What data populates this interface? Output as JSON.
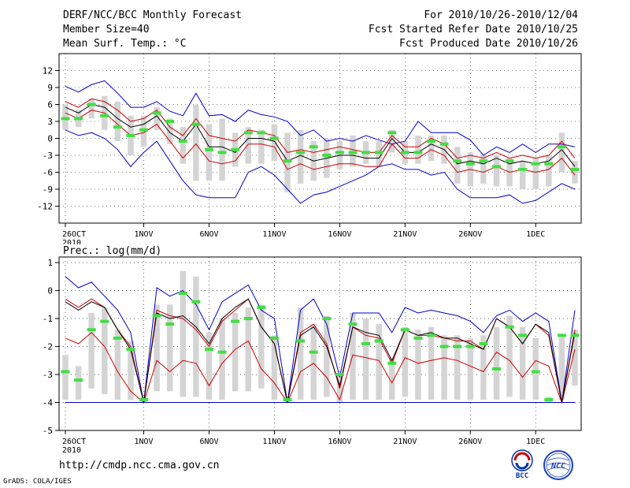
{
  "header": {
    "title": "DERF/NCC/BCC Monthly Forecast",
    "member_size": "Member Size=40",
    "variable": "Mean Surf. Temp.: °C",
    "period": "For 2010/10/26-2010/12/04",
    "started": "Fcst Started Refer Date 2010/10/25",
    "produced": "Fcst Produced Date 2010/10/26"
  },
  "precip_label": "Prec.: log(mm/d)",
  "footer": {
    "url": "http://cmdp.ncc.cma.gov.cn",
    "grads": "GrADS: COLA/IGES",
    "logo_bcc": "BCC",
    "logo_ncc": "NCC"
  },
  "colors": {
    "max_min": "#0000cc",
    "spread": "#cc0000",
    "mean": "#000000",
    "median": "#44dd44",
    "box": "#d4d4d4"
  },
  "chart_data": [
    {
      "type": "box-plume",
      "name": "temperature",
      "ylabel": "Mean Surf. Temp.: °C",
      "ylim": [
        -15,
        15
      ],
      "yticks": [
        -12,
        -9,
        -6,
        -3,
        0,
        3,
        6,
        9,
        12
      ],
      "x_tick_days": [
        0,
        6,
        11,
        16,
        21,
        26,
        31,
        36
      ],
      "x_tick_labels": [
        "26OCT",
        "1NOV",
        "6NOV",
        "11NOV",
        "16NOV",
        "21NOV",
        "26NOV",
        "1DEC"
      ],
      "x_tick_year": "2010",
      "grid": true,
      "n_days": 40,
      "series": [
        {
          "name": "max",
          "values": [
            9.2,
            8.2,
            9.5,
            10.2,
            8.0,
            5.5,
            5.5,
            6.5,
            4.8,
            4.0,
            8.0,
            4.0,
            4.2,
            3.0,
            5.0,
            4.2,
            3.8,
            3.0,
            0.5,
            1.5,
            -0.5,
            0.0,
            -0.5,
            0.5,
            -0.3,
            -1.0,
            -0.5,
            3.0,
            1.0,
            1.0,
            1.0,
            -0.3,
            -3.0,
            -1.5,
            -2.5,
            -1.0,
            -2.5,
            -1.0,
            -1.0,
            -1.5
          ]
        },
        {
          "name": "upper",
          "values": [
            6.5,
            5.5,
            7.0,
            6.5,
            5.0,
            3.0,
            3.5,
            5.0,
            2.0,
            0.5,
            3.5,
            0.5,
            0.0,
            -0.5,
            1.5,
            1.0,
            0.5,
            -2.5,
            -2.0,
            -2.5,
            -2.0,
            -1.5,
            -2.0,
            -2.5,
            -2.5,
            0.5,
            -1.5,
            -1.5,
            0.0,
            -1.0,
            -3.5,
            -3.0,
            -3.5,
            -2.5,
            -3.5,
            -3.0,
            -3.5,
            -3.0,
            -0.5,
            -3.5
          ]
        },
        {
          "name": "mean",
          "values": [
            5.5,
            4.5,
            6.0,
            5.5,
            3.5,
            2.0,
            2.5,
            4.0,
            1.0,
            -0.5,
            2.5,
            -1.5,
            -1.5,
            -2.5,
            0.0,
            0.0,
            -0.5,
            -4.0,
            -3.0,
            -4.0,
            -3.5,
            -3.0,
            -3.0,
            -3.5,
            -3.5,
            0.0,
            -2.5,
            -2.5,
            -1.0,
            -2.0,
            -4.5,
            -4.0,
            -4.5,
            -3.5,
            -4.5,
            -4.0,
            -4.5,
            -4.0,
            -2.0,
            -5.0
          ]
        },
        {
          "name": "lower",
          "values": [
            4.5,
            3.5,
            5.0,
            4.5,
            2.5,
            0.5,
            1.0,
            2.5,
            -0.5,
            -3.5,
            -1.0,
            -4.0,
            -4.5,
            -4.0,
            -1.0,
            -1.0,
            -1.5,
            -5.5,
            -4.5,
            -5.5,
            -5.0,
            -4.5,
            -4.5,
            -5.0,
            -5.0,
            -1.0,
            -3.5,
            -3.5,
            -2.0,
            -3.0,
            -6.0,
            -5.5,
            -6.0,
            -5.0,
            -6.0,
            -5.5,
            -6.0,
            -5.5,
            -3.5,
            -6.5
          ]
        },
        {
          "name": "min",
          "values": [
            1.5,
            0.5,
            1.0,
            0.0,
            -2.0,
            -5.0,
            -2.5,
            -0.5,
            -4.0,
            -7.5,
            -10.0,
            -10.5,
            -10.5,
            -10.5,
            -6.0,
            -5.0,
            -6.5,
            -9.0,
            -11.5,
            -10.0,
            -9.5,
            -8.5,
            -7.5,
            -6.5,
            -5.0,
            -4.5,
            -5.5,
            -5.5,
            -6.5,
            -6.0,
            -9.0,
            -10.5,
            -10.5,
            -10.5,
            -10.0,
            -11.5,
            -11.0,
            -9.5,
            -8.0,
            -9.0
          ]
        },
        {
          "name": "median",
          "values": [
            3.5,
            3.5,
            6.0,
            4.0,
            2.0,
            0.5,
            1.5,
            4.5,
            3.0,
            -0.5,
            2.5,
            -2.0,
            -2.5,
            -2.0,
            1.0,
            1.0,
            0.0,
            -4.0,
            -2.5,
            -1.5,
            -3.0,
            -2.5,
            -2.5,
            -2.5,
            -2.5,
            1.0,
            -2.5,
            -2.5,
            -0.5,
            -1.0,
            -4.0,
            -4.5,
            -4.0,
            -5.0,
            -4.0,
            -5.5,
            -4.5,
            -4.5,
            -1.5,
            -5.5
          ]
        },
        {
          "name": "box_top",
          "values": [
            6.0,
            5.0,
            7.0,
            7.5,
            6.5,
            4.0,
            4.0,
            5.5,
            3.5,
            2.0,
            6.0,
            2.5,
            3.5,
            1.0,
            2.0,
            1.5,
            2.5,
            1.0,
            1.5,
            -0.5,
            0.0,
            -0.5,
            0.5,
            -0.5,
            -0.5,
            1.5,
            -0.5,
            0.5,
            0.5,
            0.5,
            -1.5,
            -2.5,
            -3.0,
            -3.0,
            -3.5,
            -4.0,
            -3.5,
            -3.0,
            1.0,
            -4.0
          ]
        },
        {
          "name": "box_bottom",
          "values": [
            1.5,
            2.0,
            3.5,
            1.5,
            -0.5,
            -3.0,
            -1.5,
            1.5,
            -1.0,
            -4.5,
            -7.5,
            -7.5,
            -7.5,
            -5.0,
            -4.5,
            -4.5,
            -4.0,
            -9.5,
            -8.0,
            -7.5,
            -7.0,
            -5.5,
            -5.0,
            -4.5,
            -5.0,
            -2.5,
            -4.5,
            -4.5,
            -4.0,
            -4.5,
            -8.0,
            -8.5,
            -8.0,
            -8.5,
            -8.5,
            -9.0,
            -9.0,
            -8.5,
            -6.0,
            -8.0
          ]
        }
      ]
    },
    {
      "type": "box-plume",
      "name": "precipitation",
      "ylabel": "Prec.: log(mm/d)",
      "ylim": [
        -5,
        1.2
      ],
      "yticks": [
        -5,
        -4,
        -3,
        -2,
        -1,
        0,
        1
      ],
      "x_tick_days": [
        0,
        6,
        11,
        16,
        21,
        26,
        31,
        36
      ],
      "x_tick_labels": [
        "26OCT",
        "1NOV",
        "6NOV",
        "11NOV",
        "16NOV",
        "21NOV",
        "26NOV",
        "1DEC"
      ],
      "x_tick_year": "2010",
      "grid": true,
      "n_days": 40,
      "series": [
        {
          "name": "max",
          "values": [
            0.5,
            0.1,
            0.3,
            -0.2,
            -0.7,
            -1.5,
            -4.0,
            0.1,
            -0.2,
            0.0,
            -0.5,
            -1.4,
            -0.4,
            -0.1,
            0.2,
            -0.7,
            -1.0,
            -4.0,
            -0.7,
            -0.3,
            -1.2,
            -3.1,
            -0.8,
            -0.8,
            -0.8,
            -1.5,
            -0.6,
            -0.8,
            -0.7,
            -0.8,
            -0.9,
            -1.1,
            -1.5,
            -0.9,
            -0.7,
            -1.1,
            -0.8,
            -1.1,
            -4.0,
            -0.7
          ]
        },
        {
          "name": "upper",
          "values": [
            -0.3,
            -0.6,
            -0.3,
            -0.6,
            -1.4,
            -2.0,
            -4.0,
            -0.7,
            -0.9,
            -1.0,
            -1.4,
            -2.0,
            -1.1,
            -0.7,
            -0.3,
            -1.3,
            -1.9,
            -4.0,
            -1.5,
            -1.2,
            -1.9,
            -3.5,
            -1.3,
            -1.6,
            -1.7,
            -2.6,
            -1.4,
            -1.6,
            -1.6,
            -1.7,
            -1.8,
            -1.8,
            -2.1,
            -1.0,
            -1.3,
            -1.9,
            -1.2,
            -1.6,
            -4.0,
            -1.4
          ]
        },
        {
          "name": "mean",
          "values": [
            -0.4,
            -0.7,
            -0.4,
            -0.6,
            -1.4,
            -2.1,
            -4.0,
            -0.8,
            -1.0,
            -0.9,
            -1.3,
            -1.9,
            -1.0,
            -0.6,
            -0.3,
            -1.3,
            -1.9,
            -4.0,
            -1.6,
            -1.3,
            -2.0,
            -3.4,
            -1.3,
            -1.5,
            -1.6,
            -2.5,
            -1.4,
            -1.6,
            -1.5,
            -1.7,
            -1.7,
            -1.9,
            -2.1,
            -1.0,
            -1.3,
            -1.9,
            -1.2,
            -1.5,
            -4.0,
            -1.5
          ]
        },
        {
          "name": "lower",
          "values": [
            -1.7,
            -1.9,
            -1.5,
            -2.0,
            -2.9,
            -3.6,
            -4.0,
            -2.5,
            -2.9,
            -2.5,
            -2.6,
            -3.4,
            -2.6,
            -2.1,
            -1.8,
            -2.8,
            -3.3,
            -4.0,
            -2.9,
            -2.6,
            -3.1,
            -3.9,
            -2.3,
            -2.4,
            -2.5,
            -3.3,
            -2.4,
            -2.6,
            -2.5,
            -2.4,
            -2.5,
            -2.7,
            -2.9,
            -2.2,
            -2.5,
            -3.1,
            -2.5,
            -2.7,
            -4.0,
            -2.1
          ]
        },
        {
          "name": "min",
          "values": [
            -4.0,
            -4.0,
            -4.0,
            -4.0,
            -4.0,
            -4.0,
            -4.0,
            -4.0,
            -4.0,
            -4.0,
            -4.0,
            -4.0,
            -4.0,
            -4.0,
            -4.0,
            -4.0,
            -4.0,
            -4.0,
            -4.0,
            -4.0,
            -4.0,
            -4.0,
            -4.0,
            -4.0,
            -4.0,
            -4.0,
            -4.0,
            -4.0,
            -4.0,
            -4.0,
            -4.0,
            -4.0,
            -4.0,
            -4.0,
            -4.0,
            -4.0,
            -4.0,
            -4.0,
            -4.0,
            -4.0
          ]
        },
        {
          "name": "median",
          "values": [
            -2.9,
            -3.2,
            -1.4,
            -1.1,
            -1.7,
            -2.1,
            -3.9,
            -0.9,
            -1.2,
            -0.1,
            -0.4,
            -2.1,
            -2.2,
            -1.1,
            -1.0,
            -0.6,
            -1.7,
            -3.9,
            -1.8,
            -2.2,
            -1.0,
            -3.0,
            -1.2,
            -1.9,
            -1.8,
            -2.6,
            -1.4,
            -1.7,
            -1.6,
            -2.0,
            -2.0,
            -2.0,
            -1.9,
            -2.8,
            -1.3,
            -1.6,
            -2.9,
            -3.9,
            -1.6,
            -1.6
          ]
        },
        {
          "name": "box_top",
          "values": [
            -2.3,
            -2.7,
            -0.8,
            -0.6,
            -1.4,
            -1.8,
            -3.8,
            -0.5,
            -0.5,
            0.7,
            0.5,
            -1.5,
            -1.0,
            -0.8,
            -0.6,
            -0.5,
            -1.6,
            -3.8,
            -0.6,
            -1.2,
            -0.9,
            -3.0,
            -0.8,
            -1.0,
            -1.2,
            -2.4,
            -1.3,
            -1.4,
            -1.3,
            -1.6,
            -1.6,
            -1.7,
            -1.6,
            -1.3,
            -0.9,
            -1.3,
            -1.7,
            -3.8,
            -1.6,
            -1.4
          ]
        },
        {
          "name": "box_bottom",
          "values": [
            -3.9,
            -3.9,
            -3.5,
            -3.7,
            -3.9,
            -3.9,
            -4.0,
            -3.6,
            -3.6,
            -3.8,
            -3.8,
            -3.9,
            -3.9,
            -3.6,
            -3.6,
            -3.5,
            -3.9,
            -4.0,
            -3.9,
            -3.9,
            -3.8,
            -4.0,
            -3.9,
            -3.9,
            -3.9,
            -3.9,
            -3.8,
            -3.9,
            -3.9,
            -3.9,
            -3.9,
            -3.9,
            -3.9,
            -3.9,
            -3.8,
            -3.9,
            -3.9,
            -4.0,
            -3.9,
            -3.4
          ]
        }
      ]
    }
  ]
}
